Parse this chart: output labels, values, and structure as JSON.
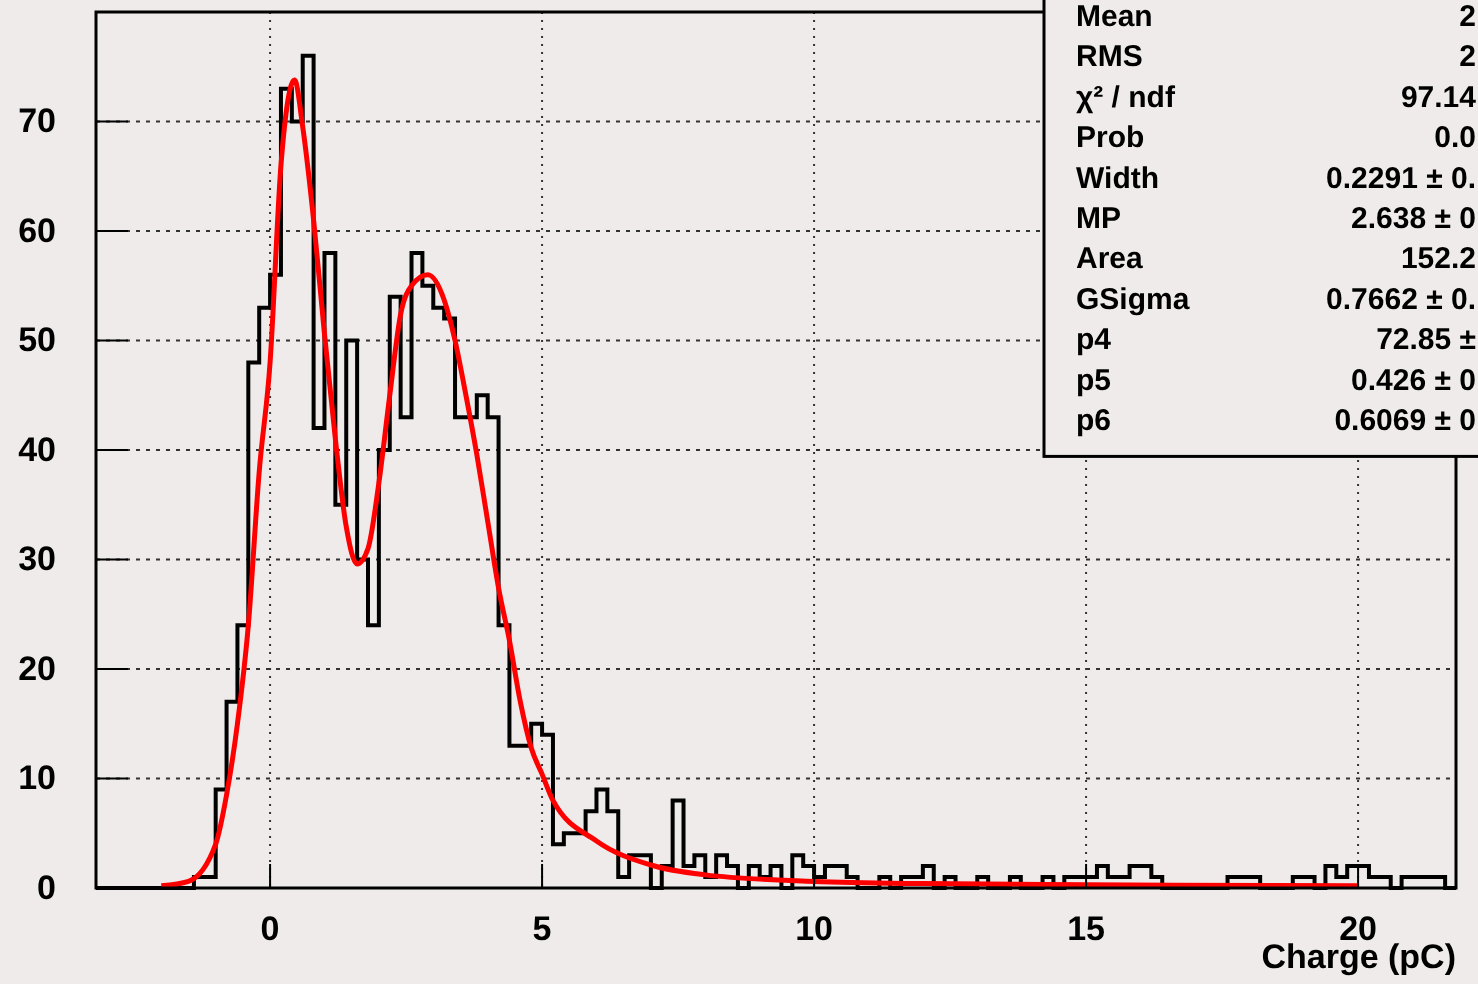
{
  "chart_data": {
    "type": "histogram",
    "xlabel": "Charge (pC)",
    "bins": [
      -3.2,
      -3,
      -2.8,
      -2.6,
      -2.4,
      -2.2,
      -2,
      -1.8,
      -1.6,
      -1.4,
      -1.2,
      -1,
      -0.8,
      -0.6,
      -0.4,
      -0.2,
      0,
      0.2,
      0.4,
      0.6,
      0.8,
      1,
      1.2,
      1.4,
      1.6,
      1.8,
      2,
      2.2,
      2.4,
      2.6,
      2.8,
      3,
      3.2,
      3.4,
      3.6,
      3.8,
      4,
      4.2,
      4.4,
      4.6,
      4.8,
      5,
      5.2,
      5.4,
      5.6,
      5.8,
      6,
      6.2,
      6.4,
      6.6,
      6.8,
      7,
      7.2,
      7.4,
      7.6,
      7.8,
      8,
      8.2,
      8.4,
      8.6,
      8.8,
      9,
      9.2,
      9.4,
      9.6,
      9.8,
      10,
      10.2,
      10.4,
      10.6,
      10.8,
      11,
      11.2,
      11.4,
      11.6,
      11.8,
      12,
      12.2,
      12.4,
      12.6,
      12.8,
      13,
      13.2,
      13.4,
      13.6,
      13.8,
      14,
      14.2,
      14.4,
      14.6,
      14.8,
      15,
      15.2,
      15.4,
      15.6,
      15.8,
      16,
      16.2,
      16.4,
      16.6,
      16.8,
      17,
      17.2,
      17.4,
      17.6,
      17.8,
      18,
      18.2,
      18.4,
      18.6,
      18.8,
      19,
      19.2,
      19.4,
      19.6,
      19.8,
      20,
      20.2,
      20.4,
      20.6,
      20.8,
      21,
      21.2,
      21.4,
      21.6,
      21.8
    ],
    "series": [
      {
        "color": "#000000",
        "values": [
          0,
          0,
          0,
          0,
          0,
          0,
          0,
          0,
          0,
          1,
          1,
          9,
          17,
          24,
          48,
          53,
          56,
          73,
          70,
          76,
          42,
          58,
          35,
          50,
          30,
          24,
          40,
          54,
          43,
          58,
          55,
          53,
          52,
          43,
          43,
          45,
          43,
          24,
          13,
          13,
          15,
          14,
          4,
          5,
          5,
          7,
          9,
          7,
          1,
          3,
          3,
          0,
          2,
          8,
          2,
          3,
          1,
          3,
          2,
          0,
          2,
          1,
          2,
          0,
          3,
          2,
          1,
          2,
          2,
          1,
          0,
          0,
          1,
          0,
          1,
          1,
          2,
          0,
          1,
          0,
          0,
          1,
          0,
          0,
          1,
          0,
          0,
          1,
          0,
          1,
          1,
          1,
          2,
          1,
          1,
          2,
          2,
          1,
          0,
          0,
          0,
          0,
          0,
          0,
          1,
          1,
          1,
          0,
          0,
          0,
          1,
          1,
          0,
          2,
          1,
          2,
          2,
          1,
          1,
          0,
          1,
          1,
          1,
          1,
          0
        ]
      },
      {
        "type": "line",
        "color": "#ff0000",
        "x": [
          -2,
          -1.5,
          -1,
          -0.8,
          -0.6,
          -0.4,
          -0.2,
          0,
          0.2,
          0.45,
          0.6,
          0.8,
          1,
          1.2,
          1.4,
          1.6,
          1.8,
          2,
          2.2,
          2.4,
          2.6,
          2.9,
          3.2,
          3.4,
          3.6,
          3.8,
          4,
          4.2,
          4.4,
          4.6,
          4.8,
          5,
          5.2,
          6,
          7,
          8,
          10,
          12,
          15,
          20
        ],
        "values": [
          0.2,
          0.6,
          4,
          8.5,
          15,
          24,
          38,
          48,
          66,
          73.8,
          69.5,
          61,
          50.6,
          41,
          33,
          29.6,
          31,
          37,
          45,
          52.4,
          55,
          56,
          53.7,
          50,
          45,
          39.6,
          33.5,
          27.4,
          22.6,
          17,
          12.8,
          10.4,
          8,
          4.3,
          2.1,
          1.2,
          0.6,
          0.4,
          0.3,
          0.2
        ]
      }
    ],
    "xlim": [
      -3.2,
      21.8
    ],
    "ylim": [
      0,
      80
    ],
    "xticks": [
      0,
      5,
      10,
      15,
      20
    ],
    "yticks": [
      0,
      10,
      20,
      30,
      40,
      50,
      60,
      70
    ],
    "grid": true,
    "marker": "none",
    "line_style": "solid",
    "annotations": [
      "Mean",
      "2",
      "RMS",
      "2",
      "χ² / ndf",
      "97.14",
      "Prob",
      "0.0",
      "Width",
      "0.2291 ± 0.",
      "MP",
      "2.638 ± 0",
      "Area",
      "152.2",
      "GSigma",
      "0.7662 ± 0.",
      "p4",
      "72.85 ±",
      "p5",
      "0.426 ± 0",
      "p6",
      "0.6069 ± 0"
    ]
  }
}
